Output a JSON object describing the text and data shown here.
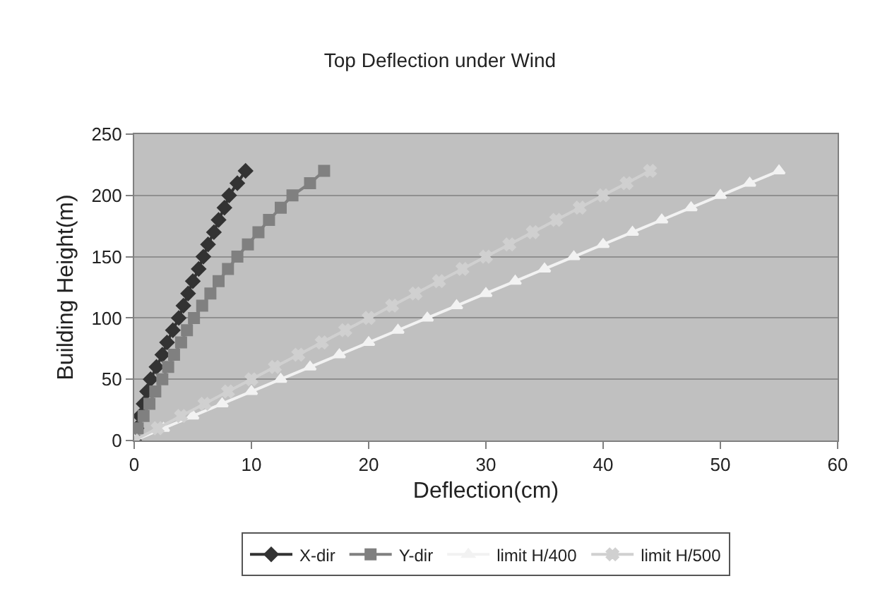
{
  "chart_data": {
    "type": "line",
    "title": "Top Deflection under Wind",
    "xlabel": "Deflection(cm)",
    "ylabel": "Building Height(m)",
    "xlim": [
      0,
      60
    ],
    "xticks": [
      0,
      10,
      20,
      30,
      40,
      50,
      60
    ],
    "ylim": [
      0,
      250
    ],
    "yticks": [
      0,
      50,
      100,
      150,
      200,
      250
    ],
    "grid": "y",
    "legend": "bottom",
    "series": [
      {
        "name": "X-dir",
        "color": "#333333",
        "marker": "diamond",
        "x": [
          0,
          0.2,
          0.5,
          0.8,
          1.1,
          1.4,
          1.9,
          2.4,
          2.8,
          3.3,
          3.8,
          4.2,
          4.6,
          5.0,
          5.5,
          5.9,
          6.3,
          6.8,
          7.2,
          7.7,
          8.1,
          8.8,
          9.5
        ],
        "values": [
          0,
          10,
          20,
          30,
          40,
          50,
          60,
          70,
          80,
          90,
          100,
          110,
          120,
          130,
          140,
          150,
          160,
          170,
          180,
          190,
          200,
          210,
          220
        ]
      },
      {
        "name": "Y-dir",
        "color": "#808080",
        "marker": "square",
        "x": [
          0,
          0.3,
          0.8,
          1.3,
          1.8,
          2.4,
          2.9,
          3.4,
          4.0,
          4.5,
          5.1,
          5.8,
          6.5,
          7.2,
          8.0,
          8.8,
          9.7,
          10.6,
          11.5,
          12.5,
          13.5,
          15.0,
          16.2
        ],
        "values": [
          0,
          10,
          20,
          30,
          40,
          50,
          60,
          70,
          80,
          90,
          100,
          110,
          120,
          130,
          140,
          150,
          160,
          170,
          180,
          190,
          200,
          210,
          220
        ]
      },
      {
        "name": "limit H/400",
        "color": "#f2f2f2",
        "marker": "triangle",
        "x": [
          0,
          2.5,
          5,
          7.5,
          10,
          12.5,
          15,
          17.5,
          20,
          22.5,
          25,
          27.5,
          30,
          32.5,
          35,
          37.5,
          40,
          42.5,
          45,
          47.5,
          50,
          52.5,
          55
        ],
        "values": [
          0,
          10,
          20,
          30,
          40,
          50,
          60,
          70,
          80,
          90,
          100,
          110,
          120,
          130,
          140,
          150,
          160,
          170,
          180,
          190,
          200,
          210,
          220
        ]
      },
      {
        "name": "limit H/500",
        "color": "#d0d0d0",
        "marker": "cross",
        "x": [
          0,
          2,
          4,
          6,
          8,
          10,
          12,
          14,
          16,
          18,
          20,
          22,
          24,
          26,
          28,
          30,
          32,
          34,
          36,
          38,
          40,
          42,
          44
        ],
        "values": [
          0,
          10,
          20,
          30,
          40,
          50,
          60,
          70,
          80,
          90,
          100,
          110,
          120,
          130,
          140,
          150,
          160,
          170,
          180,
          190,
          200,
          210,
          220
        ]
      }
    ]
  }
}
